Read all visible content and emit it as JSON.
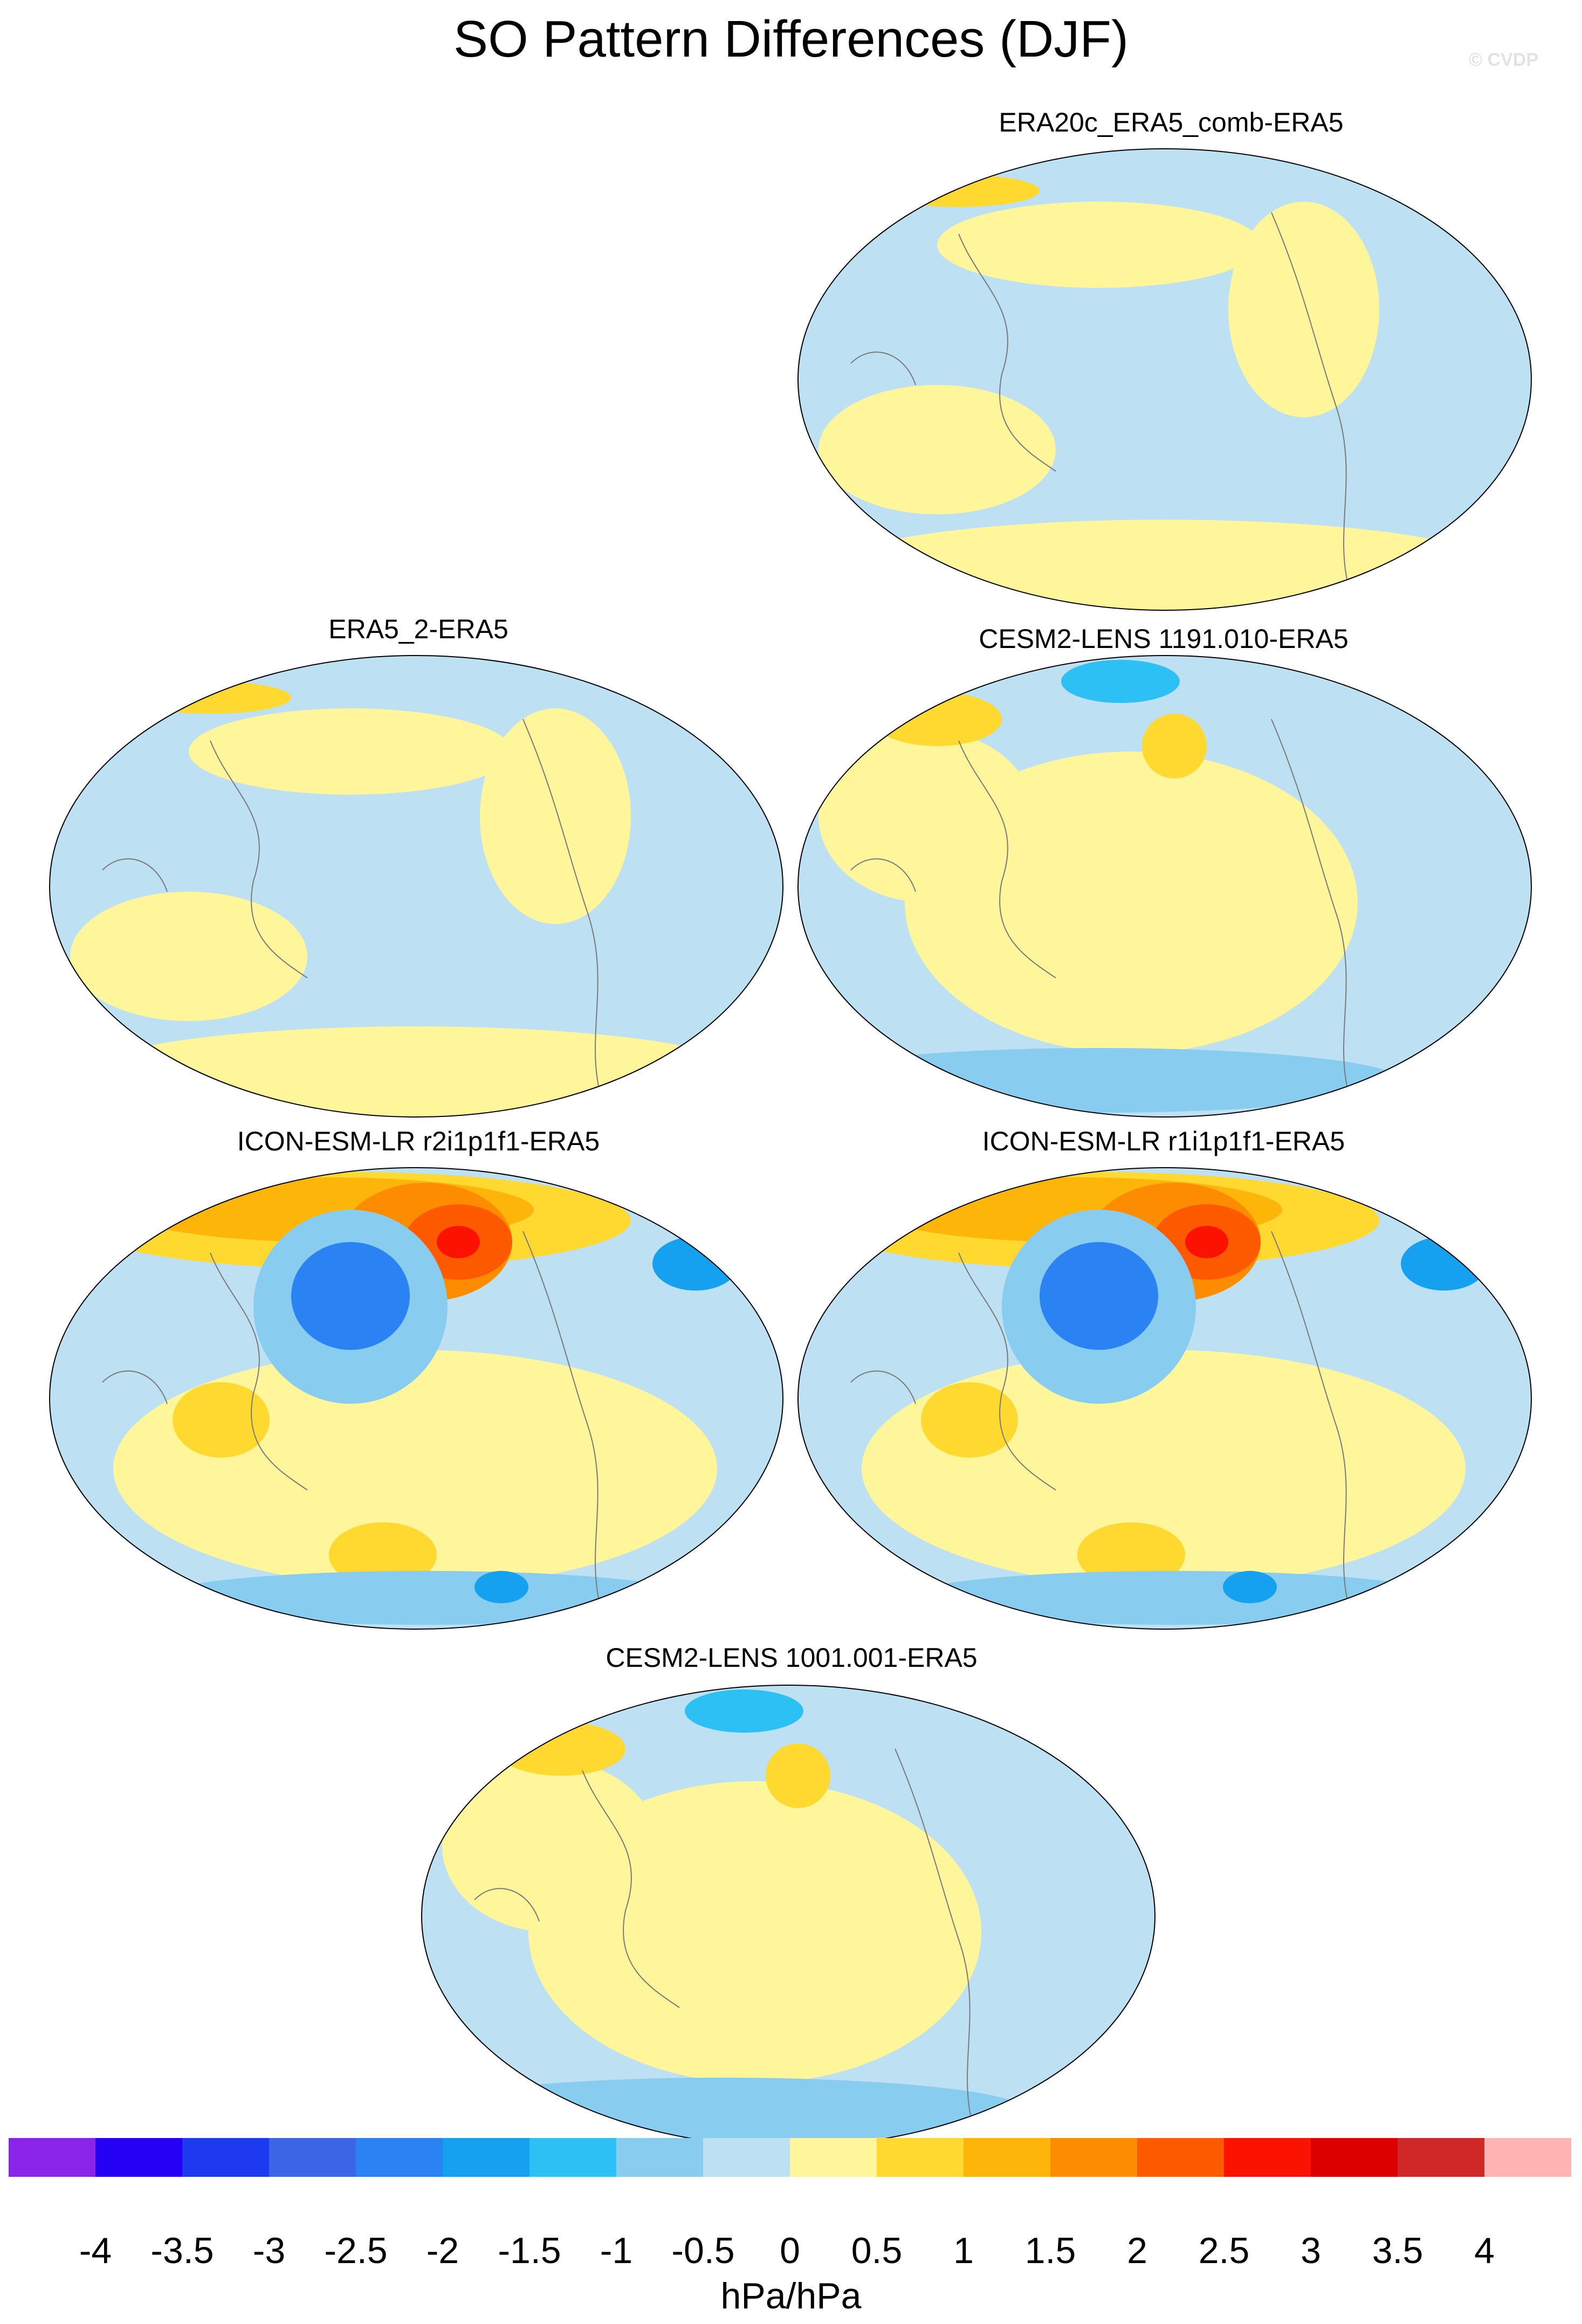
{
  "title": "SO Pattern Differences (DJF)",
  "credit": "© CVDP",
  "panels": [
    {
      "label": "ERA20c_ERA5_comb-ERA5",
      "intensity": "weak"
    },
    {
      "label": "ERA5_2-ERA5",
      "intensity": "weak"
    },
    {
      "label": "CESM2-LENS 1191.010-ERA5",
      "intensity": "moderate"
    },
    {
      "label": "ICON-ESM-LR r2i1p1f1-ERA5",
      "intensity": "strong"
    },
    {
      "label": "ICON-ESM-LR r1i1p1f1-ERA5",
      "intensity": "strong"
    },
    {
      "label": "CESM2-LENS 1001.001-ERA5",
      "intensity": "moderate"
    }
  ],
  "colorbar": {
    "colors": [
      "#8a24e8",
      "#2400f5",
      "#1e3af0",
      "#3a66e6",
      "#2b82f2",
      "#16a0f0",
      "#2cc0f4",
      "#88ccf0",
      "#bde0f2",
      "#fff59a",
      "#ffd830",
      "#fdb50a",
      "#fd8c00",
      "#fd5a00",
      "#fc1200",
      "#dc0000",
      "#d02828",
      "#ffb4b4"
    ],
    "ticks": [
      "-4",
      "-3.5",
      "-3",
      "-2.5",
      "-2",
      "-1.5",
      "-1",
      "-0.5",
      "0",
      "0.5",
      "1",
      "1.5",
      "2",
      "2.5",
      "3",
      "3.5",
      "4"
    ],
    "units": "hPa/hPa"
  }
}
